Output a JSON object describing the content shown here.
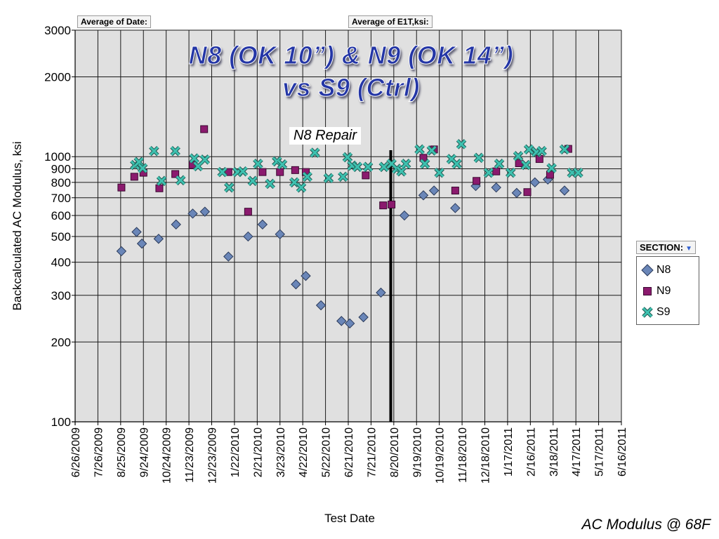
{
  "field_buttons": {
    "date": "Average of Date:",
    "e1t": "Average of E1T,ksi:"
  },
  "titles": {
    "line1": "N8 (OK 10”) & N9 (OK 14”)",
    "line2": "vs S9 (Ctrl)"
  },
  "annotation": {
    "repair_label": "N8 Repair",
    "repair_date": "2010-08-16"
  },
  "legend": {
    "header": "SECTION:",
    "arrow": "▼",
    "items": [
      {
        "name": "N8",
        "marker": "diamond",
        "color": "#6a86b8"
      },
      {
        "name": "N9",
        "marker": "square",
        "color": "#8b1a6e"
      },
      {
        "name": "S9",
        "marker": "x",
        "color": "#3ec1b0"
      }
    ]
  },
  "footer": "AC Modulus @ 68F",
  "chart_data": {
    "type": "scatter",
    "xlabel": "Test Date",
    "ylabel": "Backcalculated AC Modulus, ksi",
    "y_scale": "log",
    "ylim": [
      100,
      3000
    ],
    "y_ticks": [
      {
        "value": 100,
        "label": "100"
      },
      {
        "value": 200,
        "label": "200"
      },
      {
        "value": 300,
        "label": "300"
      },
      {
        "value": 400,
        "label": "400"
      },
      {
        "value": 500,
        "label": "500"
      },
      {
        "value": 600,
        "label": "600"
      },
      {
        "value": 700,
        "label": "700"
      },
      {
        "value": 800,
        "label": "800"
      },
      {
        "value": 900,
        "label": "900"
      },
      {
        "value": 1000,
        "label": "1000"
      },
      {
        "value": 2000,
        "label": "2000"
      },
      {
        "value": 3000,
        "label": "3000"
      }
    ],
    "xlim": [
      "2009-06-26",
      "2011-06-16"
    ],
    "x_ticks": [
      "6/26/2009",
      "7/26/2009",
      "8/25/2009",
      "9/24/2009",
      "10/24/2009",
      "11/23/2009",
      "12/23/2009",
      "1/22/2010",
      "2/21/2010",
      "3/23/2010",
      "4/22/2010",
      "5/22/2010",
      "6/21/2010",
      "7/21/2010",
      "8/20/2010",
      "9/19/2010",
      "10/19/2010",
      "11/18/2010",
      "12/18/2010",
      "1/17/2011",
      "2/16/2011",
      "3/18/2011",
      "4/17/2011",
      "5/17/2011",
      "6/16/2011"
    ],
    "grid": true,
    "legend_position": "right",
    "series": [
      {
        "name": "N8",
        "points": [
          [
            "2009-08-26",
            440
          ],
          [
            "2009-09-15",
            520
          ],
          [
            "2009-09-22",
            470
          ],
          [
            "2009-10-14",
            490
          ],
          [
            "2009-11-06",
            555
          ],
          [
            "2009-11-28",
            610
          ],
          [
            "2009-12-14",
            620
          ],
          [
            "2010-01-14",
            420
          ],
          [
            "2010-02-09",
            500
          ],
          [
            "2010-02-28",
            555
          ],
          [
            "2010-03-23",
            510
          ],
          [
            "2010-04-13",
            330
          ],
          [
            "2010-04-26",
            355
          ],
          [
            "2010-05-16",
            275
          ],
          [
            "2010-06-12",
            240
          ],
          [
            "2010-06-23",
            235
          ],
          [
            "2010-07-11",
            248
          ],
          [
            "2010-08-03",
            307
          ],
          [
            "2010-09-03",
            600
          ],
          [
            "2010-09-28",
            715
          ],
          [
            "2010-10-12",
            745
          ],
          [
            "2010-11-09",
            640
          ],
          [
            "2010-12-06",
            775
          ],
          [
            "2011-01-02",
            765
          ],
          [
            "2011-01-29",
            730
          ],
          [
            "2011-02-22",
            800
          ],
          [
            "2011-03-11",
            820
          ],
          [
            "2011-04-02",
            745
          ]
        ]
      },
      {
        "name": "N9",
        "points": [
          [
            "2009-08-26",
            765
          ],
          [
            "2009-09-12",
            840
          ],
          [
            "2009-09-24",
            870
          ],
          [
            "2009-10-15",
            760
          ],
          [
            "2009-11-05",
            860
          ],
          [
            "2009-11-28",
            930
          ],
          [
            "2009-12-13",
            1270
          ],
          [
            "2010-01-14",
            875
          ],
          [
            "2010-02-09",
            620
          ],
          [
            "2010-02-28",
            875
          ],
          [
            "2010-03-23",
            875
          ],
          [
            "2010-04-12",
            890
          ],
          [
            "2010-04-26",
            875
          ],
          [
            "2010-07-14",
            850
          ],
          [
            "2010-08-06",
            655
          ],
          [
            "2010-08-17",
            660
          ],
          [
            "2010-09-28",
            990
          ],
          [
            "2010-10-12",
            1065
          ],
          [
            "2010-11-09",
            745
          ],
          [
            "2010-12-07",
            810
          ],
          [
            "2011-01-02",
            880
          ],
          [
            "2011-02-01",
            945
          ],
          [
            "2011-02-12",
            735
          ],
          [
            "2011-02-28",
            980
          ],
          [
            "2011-03-14",
            855
          ],
          [
            "2011-04-07",
            1070
          ]
        ]
      },
      {
        "name": "S9",
        "points": [
          [
            "2009-09-13",
            930
          ],
          [
            "2009-09-18",
            955
          ],
          [
            "2009-09-23",
            905
          ],
          [
            "2009-10-08",
            1050
          ],
          [
            "2009-10-18",
            810
          ],
          [
            "2009-11-05",
            1050
          ],
          [
            "2009-11-12",
            815
          ],
          [
            "2009-11-30",
            985
          ],
          [
            "2009-12-05",
            920
          ],
          [
            "2009-12-14",
            975
          ],
          [
            "2010-01-06",
            875
          ],
          [
            "2010-01-15",
            765
          ],
          [
            "2010-01-26",
            875
          ],
          [
            "2010-02-02",
            880
          ],
          [
            "2010-02-15",
            810
          ],
          [
            "2010-02-22",
            940
          ],
          [
            "2010-03-10",
            790
          ],
          [
            "2010-03-19",
            960
          ],
          [
            "2010-03-26",
            935
          ],
          [
            "2010-04-11",
            800
          ],
          [
            "2010-04-20",
            765
          ],
          [
            "2010-04-28",
            840
          ],
          [
            "2010-05-08",
            1035
          ],
          [
            "2010-05-26",
            830
          ],
          [
            "2010-06-14",
            840
          ],
          [
            "2010-06-20",
            995
          ],
          [
            "2010-06-26",
            925
          ],
          [
            "2010-07-03",
            915
          ],
          [
            "2010-07-17",
            915
          ],
          [
            "2010-08-07",
            915
          ],
          [
            "2010-08-17",
            940
          ],
          [
            "2010-08-24",
            900
          ],
          [
            "2010-08-30",
            880
          ],
          [
            "2010-09-05",
            940
          ],
          [
            "2010-09-23",
            1065
          ],
          [
            "2010-09-30",
            940
          ],
          [
            "2010-10-09",
            1055
          ],
          [
            "2010-10-19",
            870
          ],
          [
            "2010-11-04",
            980
          ],
          [
            "2010-11-11",
            940
          ],
          [
            "2010-11-17",
            1115
          ],
          [
            "2010-12-10",
            990
          ],
          [
            "2010-12-23",
            870
          ],
          [
            "2011-01-06",
            940
          ],
          [
            "2011-01-21",
            870
          ],
          [
            "2011-01-31",
            1005
          ],
          [
            "2011-02-10",
            930
          ],
          [
            "2011-02-14",
            1065
          ],
          [
            "2011-02-24",
            1040
          ],
          [
            "2011-03-03",
            1050
          ],
          [
            "2011-03-16",
            905
          ],
          [
            "2011-04-02",
            1065
          ],
          [
            "2011-04-12",
            870
          ],
          [
            "2011-04-20",
            870
          ]
        ]
      }
    ]
  }
}
